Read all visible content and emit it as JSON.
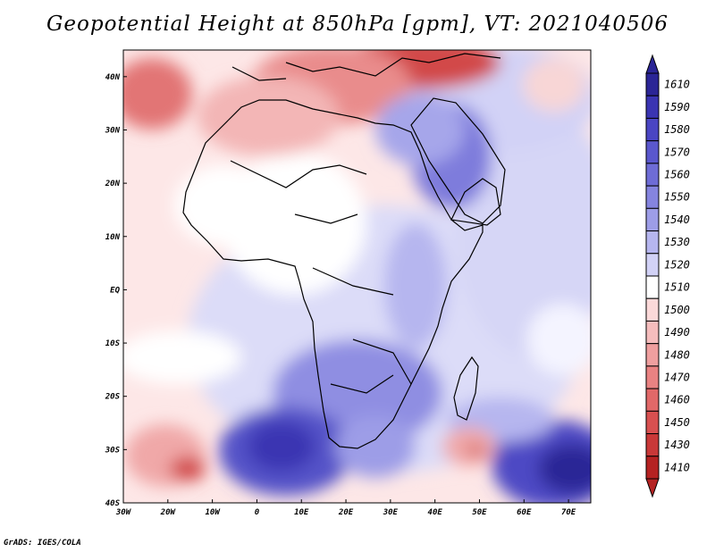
{
  "title": "Geopotential Height at 850hPa [gpm], VT: 2021040506",
  "credit": "GrADS: IGES/COLA",
  "map": {
    "lon_ticks": [
      "30W",
      "20W",
      "10W",
      "0",
      "10E",
      "20E",
      "30E",
      "40E",
      "50E",
      "60E",
      "70E"
    ],
    "lat_ticks": [
      "40N",
      "30N",
      "20N",
      "10N",
      "EQ",
      "10S",
      "20S",
      "30S",
      "40S"
    ],
    "lon_range": [
      -30,
      75
    ],
    "lat_range": [
      -40,
      45
    ]
  },
  "colorbar": {
    "labels": [
      "1610",
      "1590",
      "1580",
      "1570",
      "1560",
      "1550",
      "1540",
      "1530",
      "1520",
      "1510",
      "1500",
      "1490",
      "1480",
      "1470",
      "1460",
      "1450",
      "1430",
      "1410"
    ],
    "colors": [
      "#2b2596",
      "#3a34b2",
      "#4a45c3",
      "#5a57cd",
      "#6e6cd6",
      "#8584df",
      "#9d9de7",
      "#b6b6ef",
      "#d2d2f6",
      "#ffffff",
      "#fbd9d9",
      "#f5bdbd",
      "#ef9f9f",
      "#e98282",
      "#e16868",
      "#d85050",
      "#c93838",
      "#b52222"
    ]
  }
}
